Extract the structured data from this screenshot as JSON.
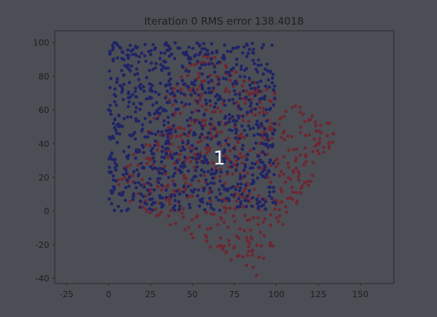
{
  "chart_data": {
    "type": "scatter",
    "title": "Iteration 0  RMS error 138.4018",
    "xlabel": "",
    "ylabel": "",
    "xlim": [
      -32,
      170
    ],
    "ylim": [
      -43,
      107
    ],
    "xticks": [
      -25,
      0,
      25,
      50,
      75,
      100,
      125,
      150
    ],
    "yticks": [
      -40,
      -20,
      0,
      20,
      40,
      60,
      80,
      100
    ],
    "grid": false,
    "annotation": {
      "text": "1",
      "x": 66,
      "y": 31
    },
    "colors": {
      "background": "#4b4e55",
      "axes_face": "#4b4e55",
      "axes_edge": "#2a2a2a",
      "text": "#1f1f1f",
      "series_a": "#1f2466",
      "series_b": "#6e2630",
      "annotation": "#ffffff"
    },
    "series": [
      {
        "color_key": "series_b",
        "description_region": "red cloud: square region rotated about its center",
        "shape": {
          "type": "rotated-square",
          "center": [
            70,
            30
          ],
          "half_size": 50,
          "angle_deg": -30
        },
        "points": 650
      },
      {
        "color_key": "series_a",
        "description_region": "blue cloud: axis-aligned square region",
        "shape": {
          "type": "square",
          "x": [
            0,
            100
          ],
          "y": [
            0,
            100
          ]
        },
        "points": 900
      }
    ]
  }
}
